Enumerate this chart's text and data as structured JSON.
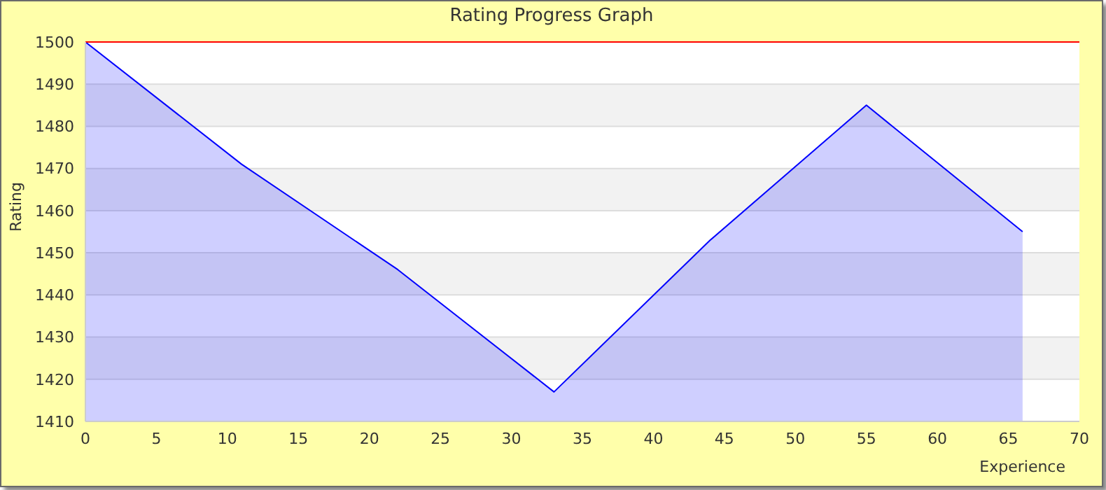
{
  "chart_data": {
    "type": "area",
    "title": "Rating Progress Graph",
    "xlabel": "Experience",
    "ylabel": "Rating",
    "x": [
      0,
      11,
      22,
      33,
      44,
      55,
      66
    ],
    "series": [
      {
        "color": "#0000ff",
        "values": [
          1500,
          1471,
          1446,
          1417,
          1453,
          1485,
          1455
        ]
      }
    ],
    "xlim": [
      0,
      70
    ],
    "xticks": [
      0,
      5,
      10,
      15,
      20,
      25,
      30,
      35,
      40,
      45,
      50,
      55,
      60,
      65,
      70
    ],
    "ylim": [
      1410,
      1500
    ],
    "yticks": [
      1410,
      1420,
      1430,
      1440,
      1450,
      1460,
      1470,
      1480,
      1490,
      1500
    ],
    "ref_lines": [
      {
        "axis": "y",
        "value": 1500,
        "color": "#ff0000"
      }
    ],
    "grid": "y",
    "marker": "none",
    "line_style": "solid"
  }
}
